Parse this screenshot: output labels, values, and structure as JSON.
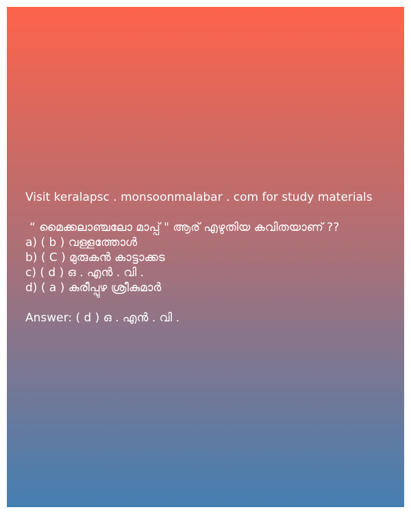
{
  "promo": "Visit keralapsc . monsoonmalabar . com for study materials",
  "question": "“ മൈക്കലാഞ്ചലോ മാപ്പ് \" ആര് എഴുതിയ കവിതയാണ് ??",
  "options": [
    "a) ( b ) വള്ളത്തോൾ",
    "b) ( C ) മുരുകൻ കാട്ടാക്കട",
    "c) ( d ) ഒ . എൻ . വി .",
    "d) ( a ) കുരീപ്പുഴ ശ്രീകുമാർ"
  ],
  "answer": "Answer: ( d ) ഒ . എൻ . വി ."
}
